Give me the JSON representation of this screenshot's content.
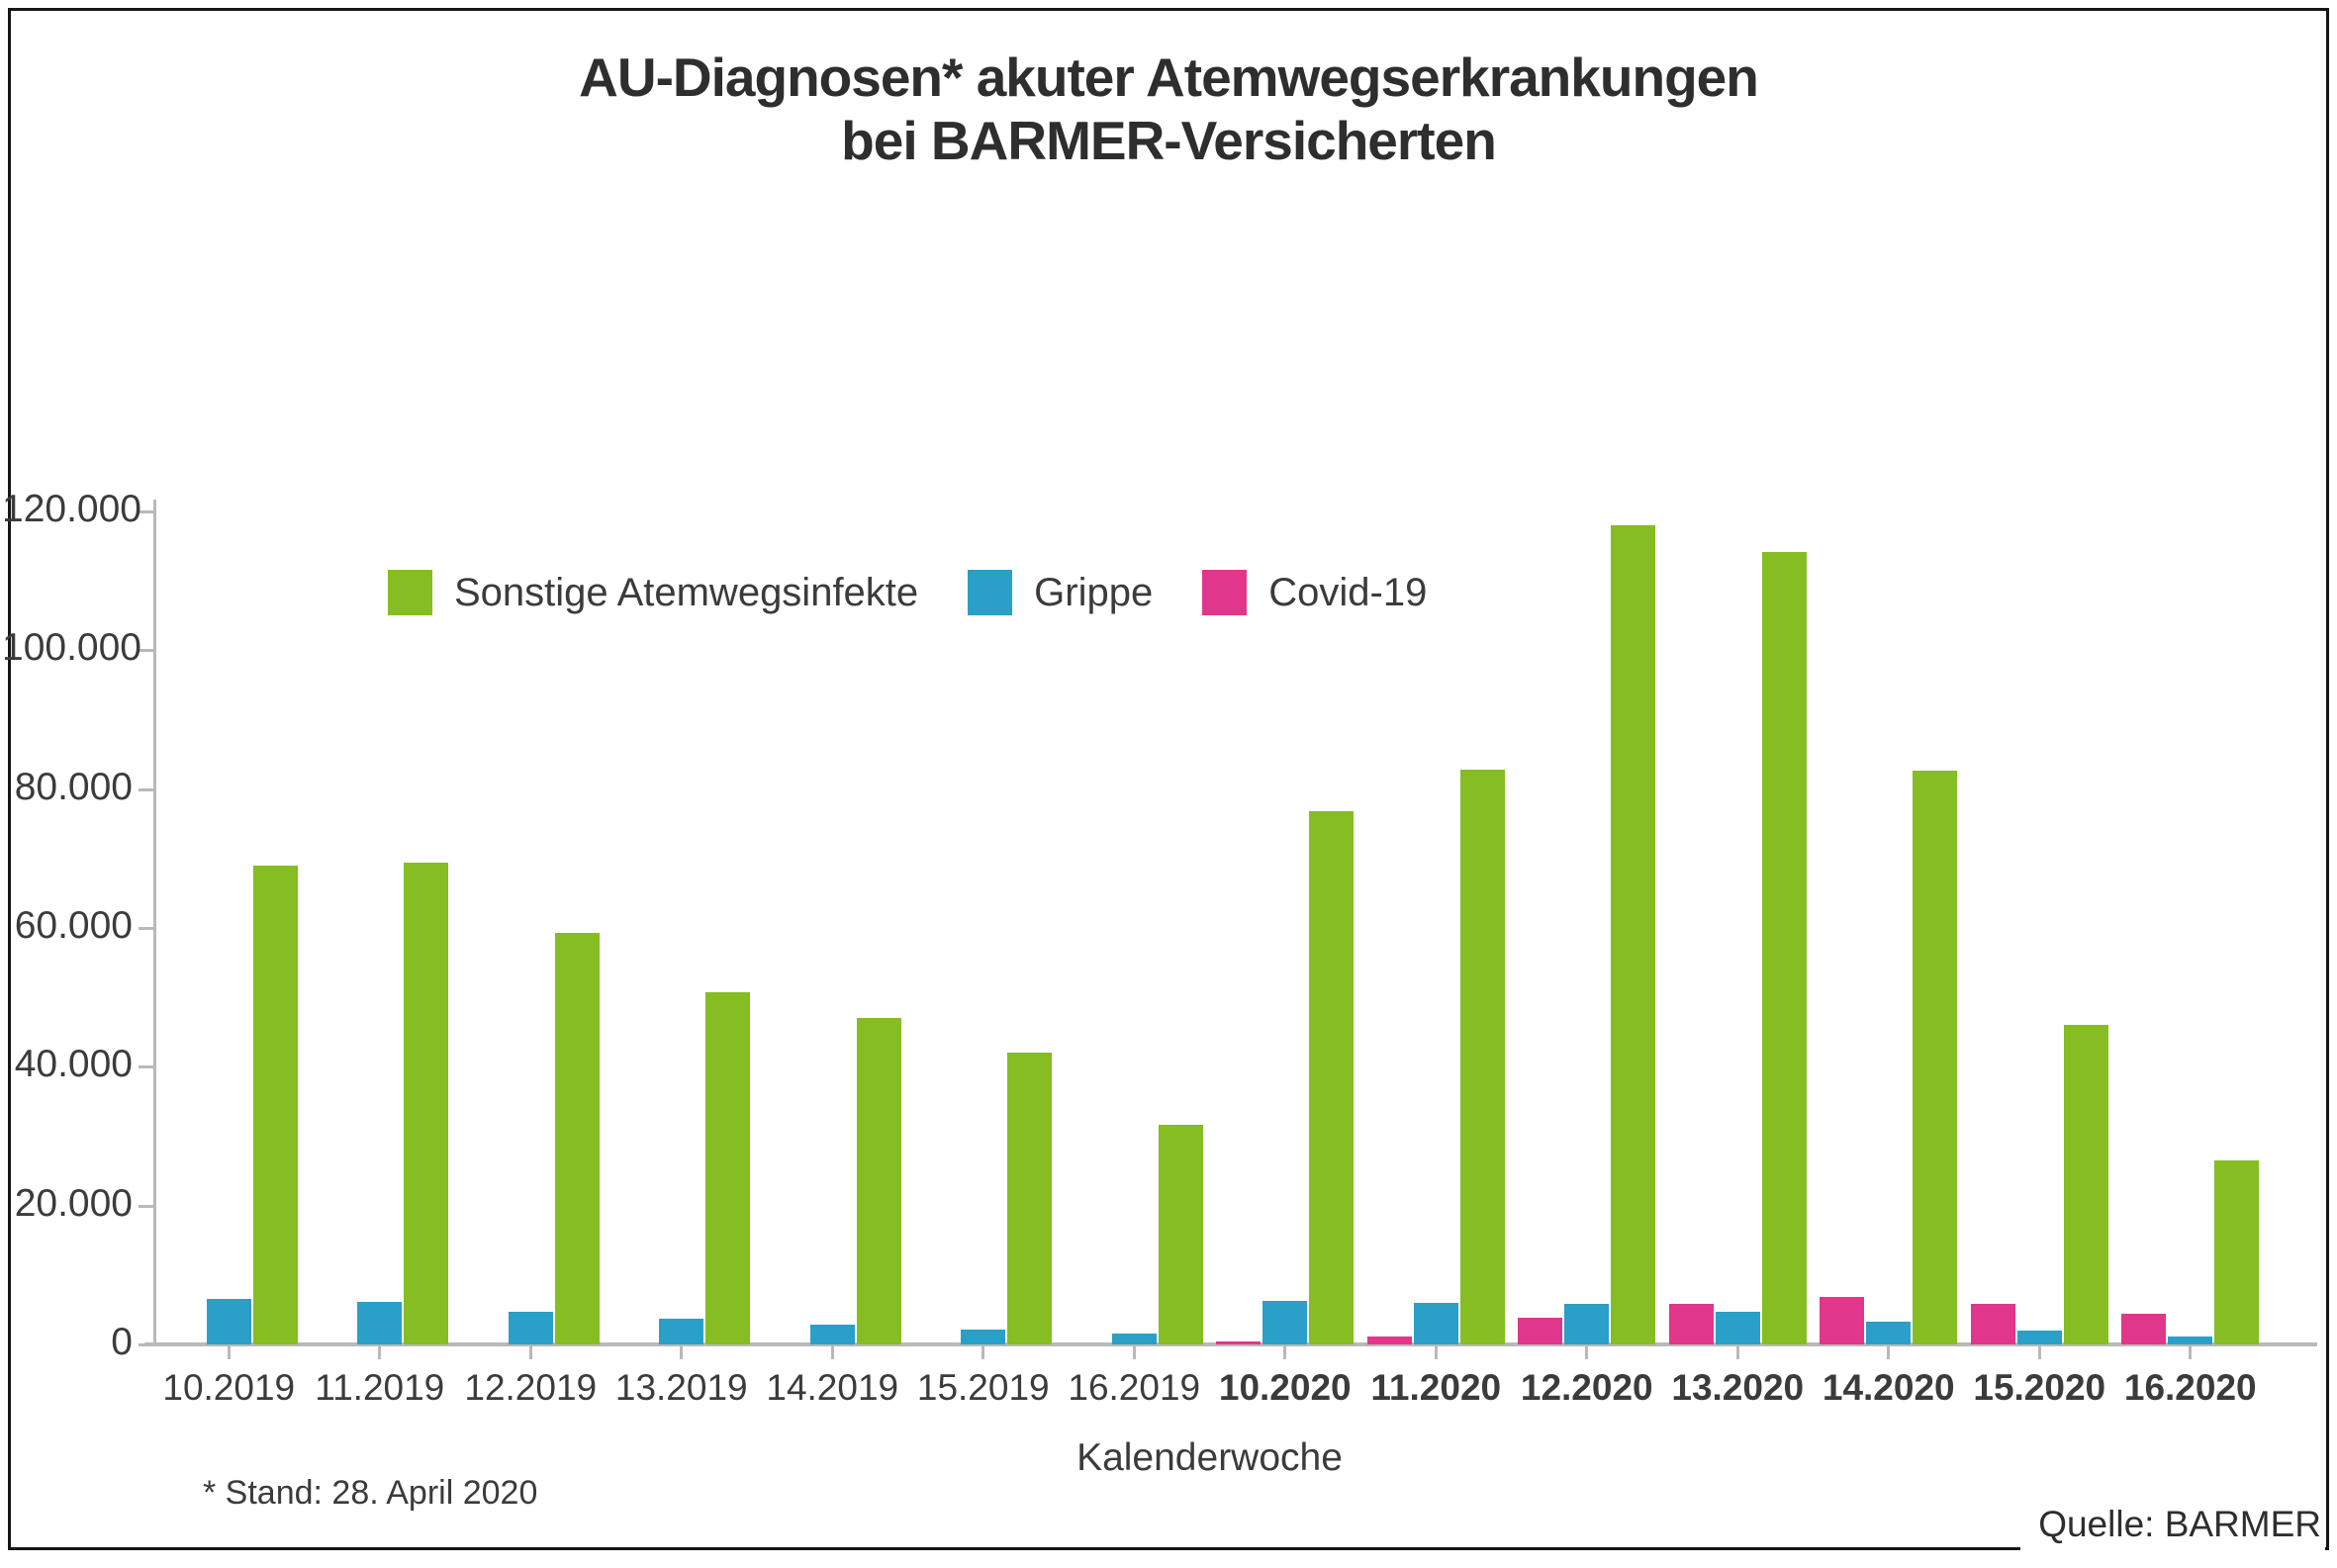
{
  "title_line1": "AU-Diagnosen* akuter Atemwegserkrankungen",
  "title_line2": "bei BARMER-Versicherten",
  "footnote": "* Stand: 28. April 2020",
  "source": "Quelle: BARMER",
  "colors": {
    "sonstige_green": "#85bd22",
    "grippe_blue": "#2a9fc8",
    "covid_pink": "#e0378c",
    "axis_gray": "#b9b9b9",
    "text": "#3b3b3b"
  },
  "legend": [
    {
      "label": "Sonstige Atemwegsinfekte",
      "color": "#85bd22"
    },
    {
      "label": "Grippe",
      "color": "#2a9fc8"
    },
    {
      "label": "Covid-19",
      "color": "#e0378c"
    }
  ],
  "chart_data": {
    "type": "bar",
    "title": "AU-Diagnosen* akuter Atemwegserkrankungen bei BARMER-Versicherten",
    "xlabel": "Kalenderwoche",
    "ylabel": "",
    "ylim": [
      0,
      120000
    ],
    "grid": false,
    "legend_position": "top-left-inside",
    "yticks": [
      0,
      20000,
      40000,
      60000,
      80000,
      100000,
      120000
    ],
    "ytick_labels": [
      "0",
      "20.000",
      "40.000",
      "60.000",
      "80.000",
      "100.000",
      "120.000"
    ],
    "categories": [
      "10.2019",
      "11.2019",
      "12.2019",
      "13.2019",
      "14.2019",
      "15.2019",
      "16.2019",
      "10.2020",
      "11.2020",
      "12.2020",
      "13.2020",
      "14.2020",
      "15.2020",
      "16.2020"
    ],
    "bold_labels": [
      "10.2020",
      "11.2020",
      "12.2020",
      "13.2020",
      "14.2020",
      "15.2020",
      "16.2020"
    ],
    "series": [
      {
        "name": "Covid-19",
        "color": "#e0378c",
        "values": [
          0,
          0,
          0,
          0,
          0,
          0,
          0,
          400,
          1100,
          3800,
          5800,
          6900,
          5800,
          4400
        ]
      },
      {
        "name": "Grippe",
        "color": "#2a9fc8",
        "values": [
          6600,
          6100,
          4700,
          3700,
          2900,
          2100,
          1500,
          6200,
          6000,
          5800,
          4700,
          3300,
          2000,
          1200
        ]
      },
      {
        "name": "Sonstige Atemwegsinfekte",
        "color": "#85bd22",
        "values": [
          69000,
          69400,
          59300,
          50700,
          47000,
          42000,
          31600,
          76800,
          82800,
          118000,
          114200,
          82700,
          46000,
          26500
        ]
      }
    ]
  }
}
